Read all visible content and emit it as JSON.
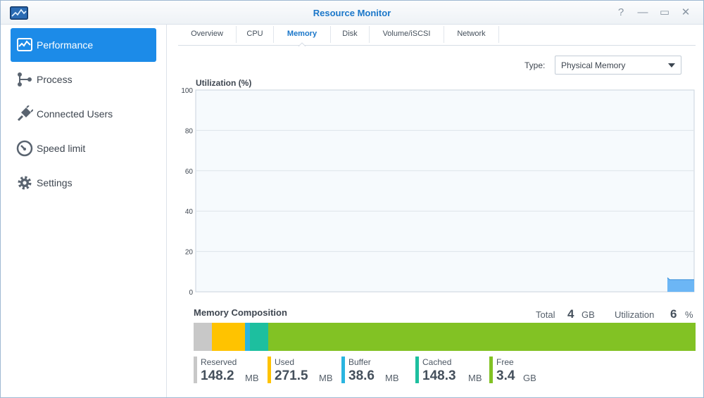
{
  "window": {
    "title": "Resource Monitor",
    "controls": {
      "help": "?",
      "minimize": "—",
      "maximize": "▭",
      "close": "✕"
    }
  },
  "sidebar": {
    "items": [
      {
        "label": "Performance",
        "icon": "performance-icon",
        "active": true
      },
      {
        "label": "Process",
        "icon": "process-icon"
      },
      {
        "label": "Connected Users",
        "icon": "plug-icon"
      },
      {
        "label": "Speed limit",
        "icon": "speedometer-icon"
      },
      {
        "label": "Settings",
        "icon": "gear-icon"
      }
    ]
  },
  "tabs": [
    {
      "label": "Overview"
    },
    {
      "label": "CPU"
    },
    {
      "label": "Memory",
      "active": true
    },
    {
      "label": "Disk"
    },
    {
      "label": "Volume/iSCSI"
    },
    {
      "label": "Network"
    }
  ],
  "type_selector": {
    "label": "Type:",
    "value": "Physical Memory"
  },
  "chart": {
    "title": "Utilization (%)",
    "y_ticks": [
      "100",
      "80",
      "60",
      "40",
      "20",
      "0"
    ]
  },
  "chart_data": {
    "type": "area",
    "title": "Utilization (%)",
    "xlabel": "",
    "ylabel": "",
    "ylim": [
      0,
      100
    ],
    "y_ticks": [
      0,
      20,
      40,
      60,
      80,
      100
    ],
    "grid": true,
    "series": [
      {
        "values": [
          7,
          6,
          6,
          6,
          6,
          6,
          6,
          6,
          6,
          6,
          6,
          6,
          6
        ]
      }
    ],
    "colors": {
      "fill": "#6cb6f5",
      "stroke": "#3a8fd8",
      "plot_bg": "#f6fafd",
      "grid": "#dde4ea"
    }
  },
  "composition": {
    "title": "Memory Composition",
    "total_label": "Total",
    "total_value": "4",
    "total_unit": "GB",
    "util_label": "Utilization",
    "util_value": "6",
    "util_unit": "%",
    "segments": [
      {
        "name": "Reserved",
        "value": "148.2",
        "unit": "MB",
        "color": "#c8c8c8",
        "mb": 148.2
      },
      {
        "name": "Used",
        "value": "271.5",
        "unit": "MB",
        "color": "#ffc300",
        "mb": 271.5
      },
      {
        "name": "Buffer",
        "value": "38.6",
        "unit": "MB",
        "color": "#2ab5e0",
        "mb": 38.6
      },
      {
        "name": "Cached",
        "value": "148.3",
        "unit": "MB",
        "color": "#1dbf9f",
        "mb": 148.3
      },
      {
        "name": "Free",
        "value": "3.4",
        "unit": "GB",
        "color": "#82c224",
        "mb": 3481.6
      }
    ]
  }
}
